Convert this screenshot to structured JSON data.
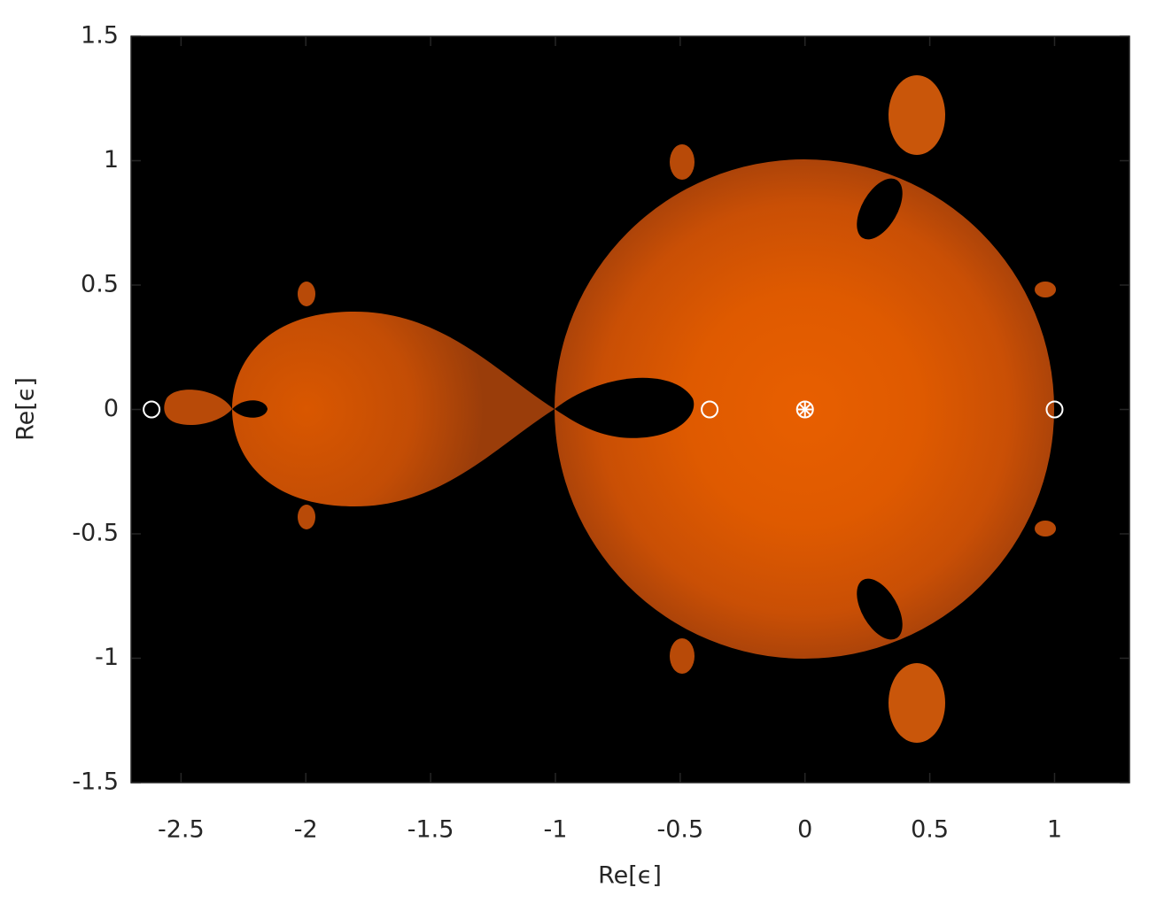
{
  "chart_data": {
    "type": "scatter",
    "xlabel": "Re[ϵ]",
    "ylabel": "Re[ϵ]",
    "xlim": [
      -2.7,
      1.3
    ],
    "ylim": [
      -1.5,
      1.5
    ],
    "xticks": [
      -2.5,
      -2,
      -1.5,
      -1,
      -0.5,
      0,
      0.5,
      1
    ],
    "yticks": [
      -1.5,
      -1,
      -0.5,
      0,
      0.5,
      1,
      1.5
    ],
    "plot_background": "#000000",
    "series": [
      {
        "marker": "circle",
        "color": "#ffffff",
        "x": [
          -2.618,
          -0.382,
          1
        ],
        "values": [
          0,
          0,
          0
        ]
      },
      {
        "marker": "asterisk-circle",
        "color": "#ffffff",
        "x": [
          0
        ],
        "values": [
          0
        ]
      }
    ]
  }
}
